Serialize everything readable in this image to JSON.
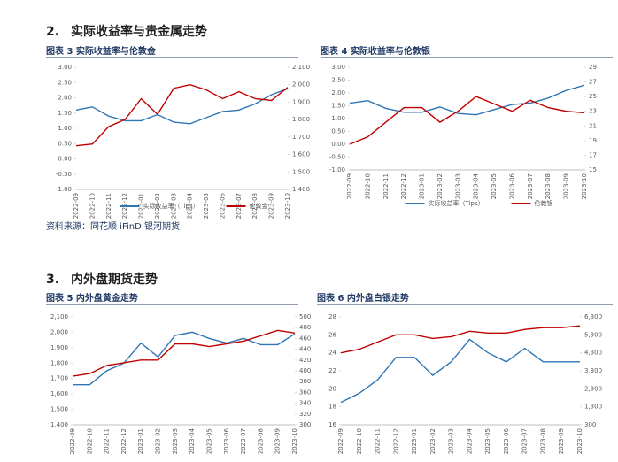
{
  "sections": [
    {
      "number": "2.",
      "title": "实际收益率与贵金属走势"
    },
    {
      "number": "3.",
      "title": "内外盘期货走势"
    }
  ],
  "source": "资料来源：同花顺 iFinD    银河期货",
  "chart_data": [
    {
      "type": "line",
      "title": "图表 3 实际收益率与伦敦金",
      "categories": [
        "2022-09",
        "2022-10",
        "2022-11",
        "2022-12",
        "2023-01",
        "2023-02",
        "2023-03",
        "2023-04",
        "2023-05",
        "2023-06",
        "2023-07",
        "2023-08",
        "2023-09",
        "2023-10"
      ],
      "series": [
        {
          "name": "实际收益率（Tips）",
          "color": "#2e75b6",
          "values": [
            1.6,
            1.7,
            1.4,
            1.25,
            1.25,
            1.45,
            1.2,
            1.15,
            1.35,
            1.55,
            1.6,
            1.8,
            2.1,
            2.3
          ]
        },
        {
          "name": "伦敦金",
          "color": "#c00000",
          "axis": "y2",
          "values": [
            1650,
            1660,
            1760,
            1800,
            1920,
            1830,
            1980,
            2000,
            1970,
            1920,
            1960,
            1920,
            1910,
            1985
          ]
        }
      ],
      "ylim": [
        -1,
        3
      ],
      "yticks": [
        {
          "value": -1,
          "label": "-1.00"
        },
        {
          "value": -0.5,
          "label": "-0.50"
        },
        {
          "value": 0,
          "label": "0.00"
        },
        {
          "value": 0.5,
          "label": "0.50"
        },
        {
          "value": 1,
          "label": "1.00"
        },
        {
          "value": 1.5,
          "label": "1.50"
        },
        {
          "value": 2,
          "label": "2.00"
        },
        {
          "value": 2.5,
          "label": "2.50"
        },
        {
          "value": 3,
          "label": "3.00"
        }
      ],
      "y2lim": [
        1400,
        2100
      ],
      "y2ticks": [
        {
          "value": 1400,
          "label": "1,400"
        },
        {
          "value": 1500,
          "label": "1,500"
        },
        {
          "value": 1600,
          "label": "1,600"
        },
        {
          "value": 1700,
          "label": "1,700"
        },
        {
          "value": 1800,
          "label": "1,800"
        },
        {
          "value": 1900,
          "label": "1,900"
        },
        {
          "value": 2000,
          "label": "2,000"
        },
        {
          "value": 2100,
          "label": "2,100"
        }
      ],
      "legend": "bottom"
    },
    {
      "type": "line",
      "title": "图表 4 实际收益率与伦敦银",
      "categories": [
        "2022-09",
        "2022-10",
        "2022-11",
        "2022-12",
        "2023-01",
        "2023-02",
        "2023-03",
        "2023-04",
        "2023-05",
        "2023-06",
        "2023-07",
        "2023-08",
        "2023-09",
        "2023-10"
      ],
      "series": [
        {
          "name": "实际收益率（Tips）",
          "color": "#2e75b6",
          "values": [
            1.6,
            1.7,
            1.4,
            1.25,
            1.25,
            1.45,
            1.2,
            1.15,
            1.35,
            1.55,
            1.6,
            1.8,
            2.1,
            2.3
          ]
        },
        {
          "name": "伦敦银",
          "color": "#c00000",
          "axis": "y2",
          "values": [
            18.5,
            19.5,
            21.5,
            23.5,
            23.5,
            21.5,
            23,
            25,
            24,
            23,
            24.5,
            23.5,
            23,
            22.8
          ]
        }
      ],
      "ylim": [
        -1,
        3
      ],
      "yticks": [
        {
          "value": -1,
          "label": "-1.00"
        },
        {
          "value": -0.5,
          "label": "-0.50"
        },
        {
          "value": 0,
          "label": "0.00"
        },
        {
          "value": 0.5,
          "label": "0.50"
        },
        {
          "value": 1,
          "label": "1.00"
        },
        {
          "value": 1.5,
          "label": "1.50"
        },
        {
          "value": 2,
          "label": "2.00"
        },
        {
          "value": 2.5,
          "label": "2.50"
        },
        {
          "value": 3,
          "label": "3.00"
        }
      ],
      "y2lim": [
        15,
        29
      ],
      "y2ticks": [
        15,
        17,
        19,
        21,
        23,
        25,
        27,
        29
      ],
      "legend": "bottom"
    },
    {
      "type": "line",
      "title": "图表 5 内外盘黄金走势",
      "categories": [
        "2022-09",
        "2022-10",
        "2022-11",
        "2022-12",
        "2023-01",
        "2023-02",
        "2023-03",
        "2023-04",
        "2023-05",
        "2023-06",
        "2023-07",
        "2023-08",
        "2023-09",
        "2023-10"
      ],
      "series": [
        {
          "color": "#2e75b6",
          "values": [
            1660,
            1660,
            1750,
            1800,
            1930,
            1840,
            1980,
            2000,
            1960,
            1930,
            1960,
            1920,
            1920,
            1990
          ]
        },
        {
          "color": "#c00000",
          "axis": "y2",
          "values": [
            390,
            395,
            410,
            415,
            420,
            420,
            450,
            450,
            445,
            450,
            455,
            465,
            475,
            470
          ]
        }
      ],
      "ylim": [
        1400,
        2100
      ],
      "yticks": [
        {
          "value": 1400,
          "label": "1,400"
        },
        {
          "value": 1500,
          "label": "1,500"
        },
        {
          "value": 1600,
          "label": "1,600"
        },
        {
          "value": 1700,
          "label": "1,700"
        },
        {
          "value": 1800,
          "label": "1,800"
        },
        {
          "value": 1900,
          "label": "1,900"
        },
        {
          "value": 2000,
          "label": "2,000"
        },
        {
          "value": 2100,
          "label": "2,100"
        }
      ],
      "y2lim": [
        300,
        500
      ],
      "y2ticks": [
        300,
        320,
        340,
        360,
        380,
        400,
        420,
        440,
        460,
        480,
        500
      ]
    },
    {
      "type": "line",
      "title": "图表 6 内外盘白银走势",
      "categories": [
        "2022-09",
        "2022-10",
        "2022-11",
        "2022-12",
        "2023-01",
        "2023-02",
        "2023-03",
        "2023-04",
        "2023-05",
        "2023-06",
        "2023-07",
        "2023-08",
        "2023-09",
        "2023-10"
      ],
      "series": [
        {
          "color": "#2e75b6",
          "values": [
            18.5,
            19.5,
            21,
            23.5,
            23.5,
            21.5,
            23,
            25.5,
            24,
            23,
            24.5,
            23,
            23,
            23
          ]
        },
        {
          "color": "#c00000",
          "axis": "y2",
          "values": [
            4300,
            4500,
            4900,
            5300,
            5300,
            5100,
            5200,
            5500,
            5400,
            5400,
            5600,
            5700,
            5700,
            5800
          ]
        }
      ],
      "ylim": [
        16,
        28
      ],
      "yticks": [
        16,
        18,
        20,
        22,
        24,
        26,
        28
      ],
      "y2lim": [
        300,
        6300
      ],
      "y2ticks": [
        300,
        {
          "value": 1300,
          "label": "1,300"
        },
        {
          "value": 2300,
          "label": "2,300"
        },
        {
          "value": 3300,
          "label": "3,300"
        },
        {
          "value": 4300,
          "label": "4,300"
        },
        {
          "value": 5300,
          "label": "5,300"
        },
        {
          "value": 6300,
          "label": "6,300"
        }
      ]
    }
  ]
}
